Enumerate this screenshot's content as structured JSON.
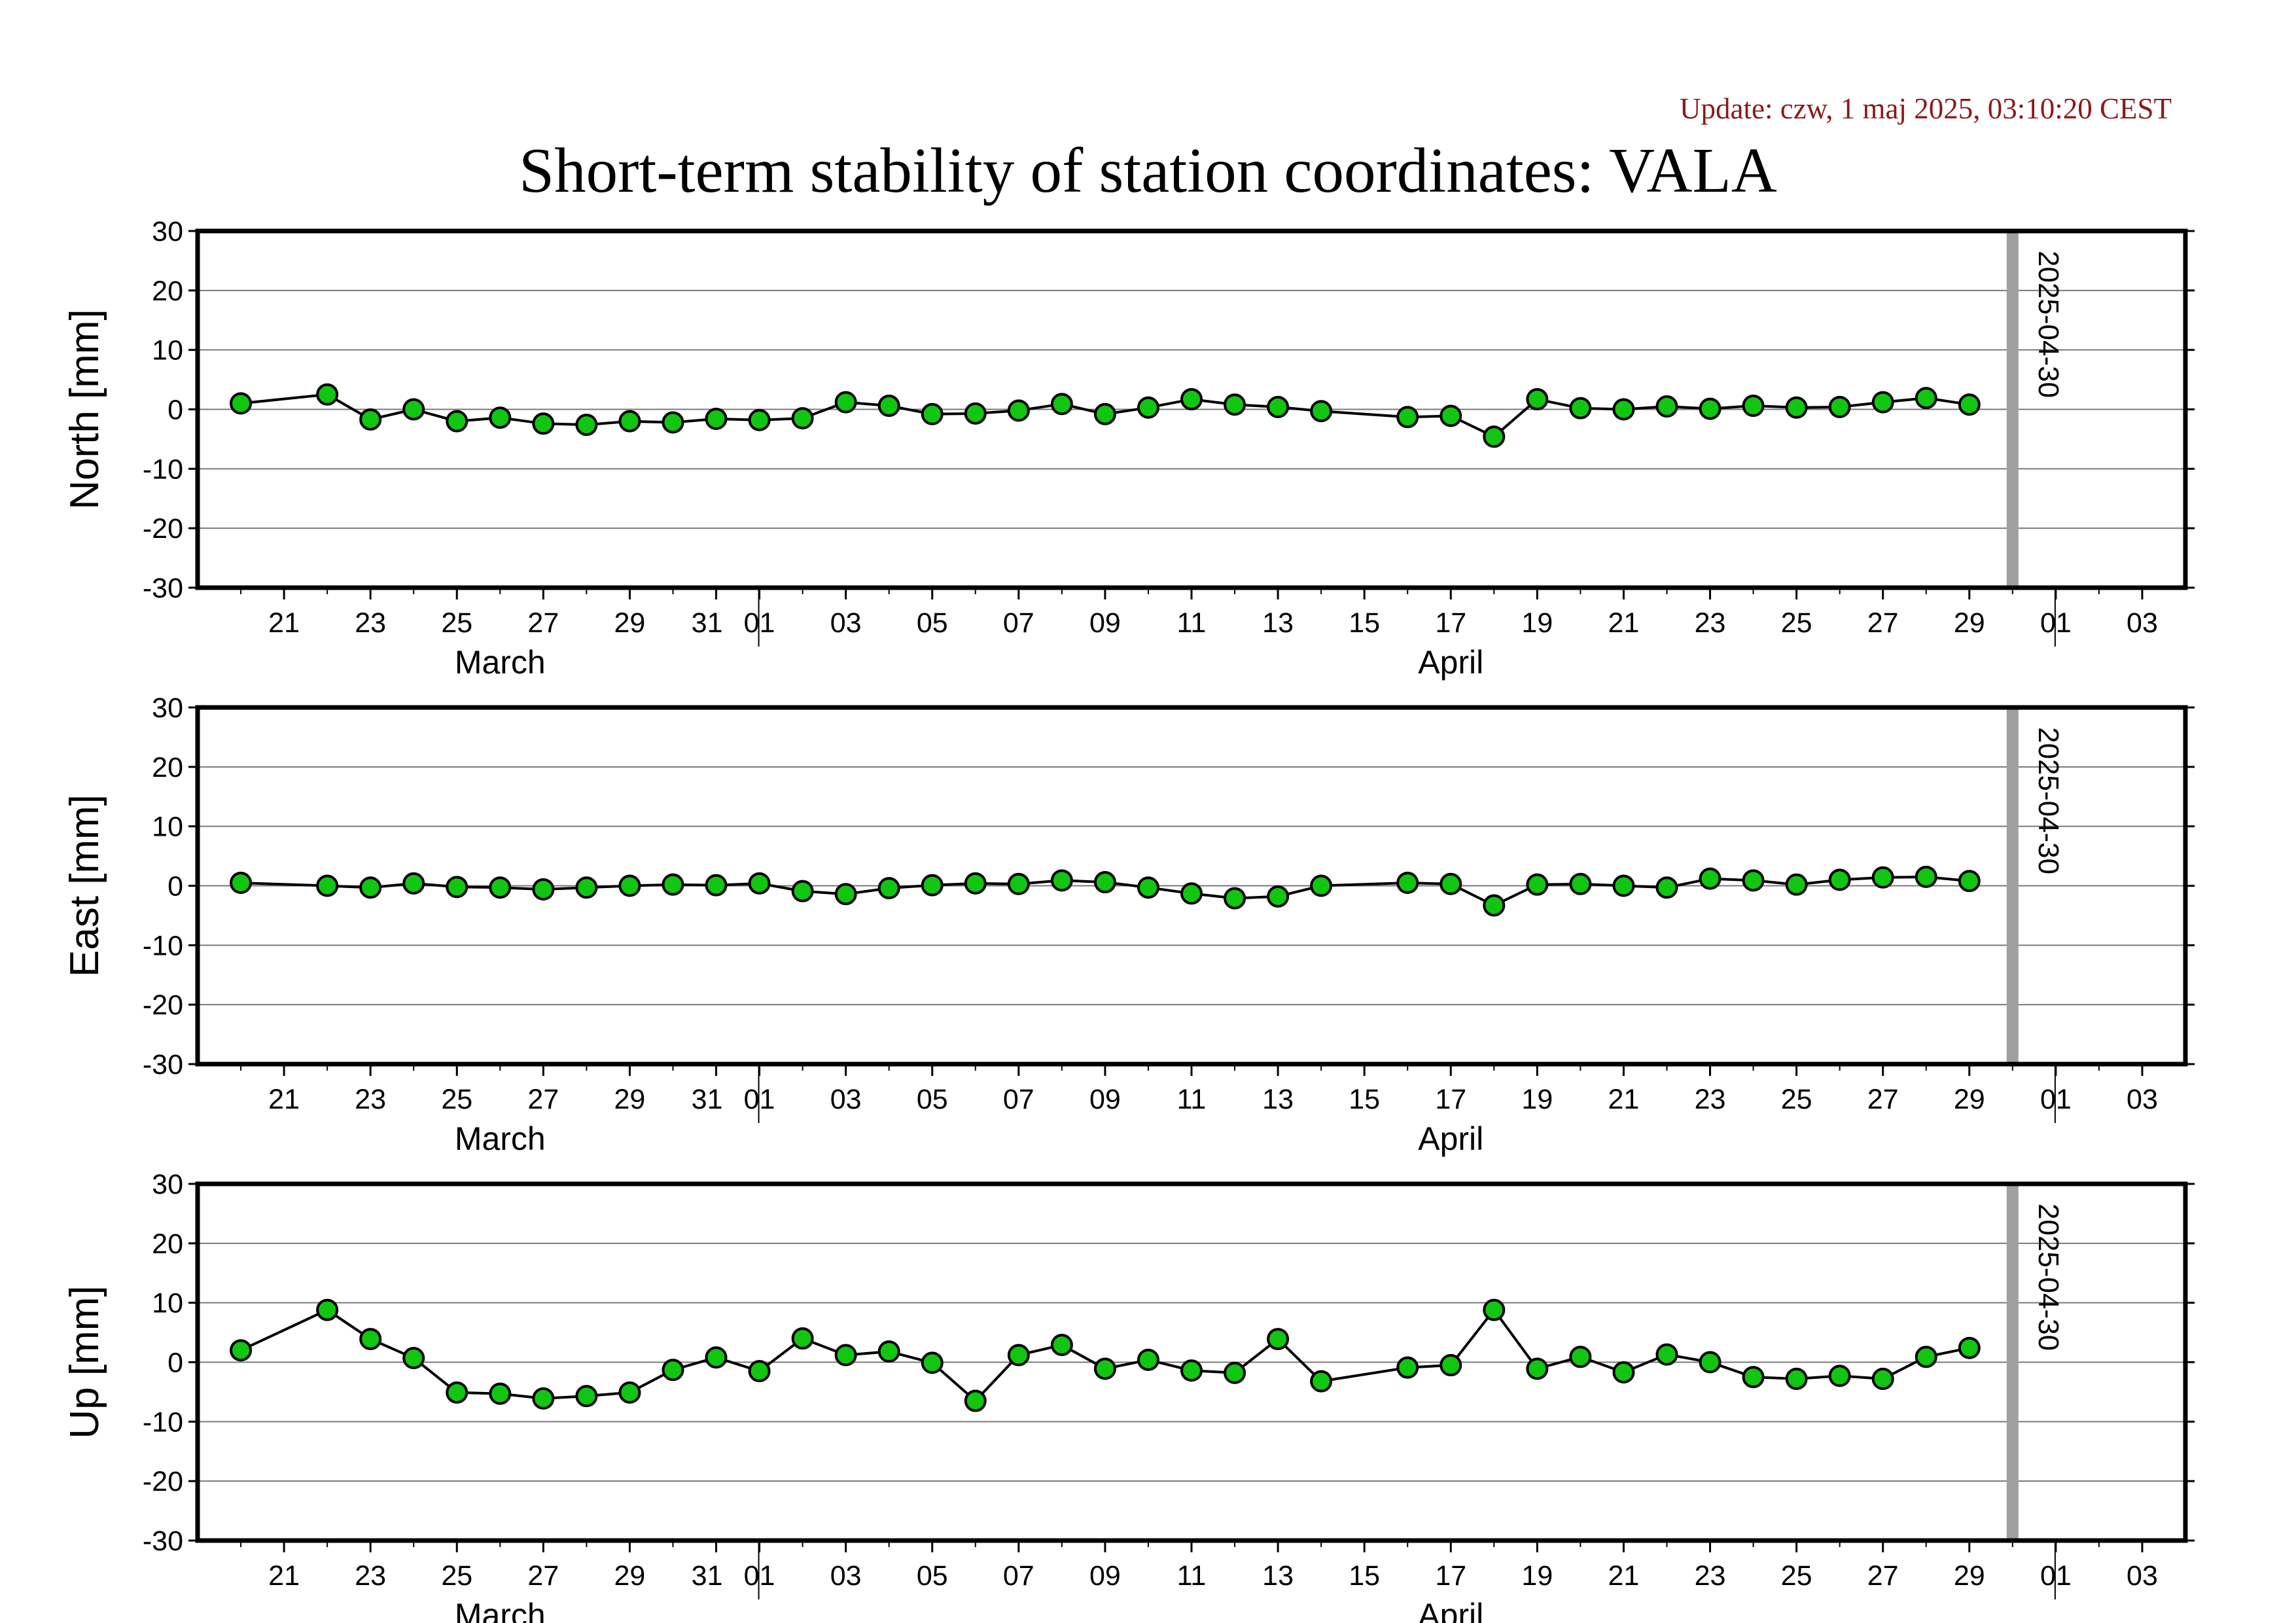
{
  "header": {
    "update": "Update: czw, 1 maj 2025, 03:10:20 CEST",
    "title": "Short-term stability of station coordinates: VALA"
  },
  "colors": {
    "marker_fill": "#11c611",
    "marker_stroke": "#000000",
    "line": "#000000",
    "marker_line": "#a0a0a0",
    "grid": "#7a7a7a",
    "stamp": "#8b1a1a"
  },
  "chart_data": [
    {
      "type": "line",
      "ylabel": "North [mm]",
      "ylim": [
        -30,
        30
      ],
      "yticks": [
        -30,
        -20,
        -10,
        0,
        10,
        20,
        30
      ],
      "xlim": [
        "2025-03-19",
        "2025-05-04"
      ],
      "xtick_labels": [
        {
          "date": "2025-03-21",
          "label": "21"
        },
        {
          "date": "2025-03-23",
          "label": "23"
        },
        {
          "date": "2025-03-25",
          "label": "25"
        },
        {
          "date": "2025-03-27",
          "label": "27"
        },
        {
          "date": "2025-03-29",
          "label": "29"
        },
        {
          "date": "2025-03-31",
          "label": "31"
        },
        {
          "date": "2025-04-01",
          "label": "01"
        },
        {
          "date": "2025-04-03",
          "label": "03"
        },
        {
          "date": "2025-04-05",
          "label": "05"
        },
        {
          "date": "2025-04-07",
          "label": "07"
        },
        {
          "date": "2025-04-09",
          "label": "09"
        },
        {
          "date": "2025-04-11",
          "label": "11"
        },
        {
          "date": "2025-04-13",
          "label": "13"
        },
        {
          "date": "2025-04-15",
          "label": "15"
        },
        {
          "date": "2025-04-17",
          "label": "17"
        },
        {
          "date": "2025-04-19",
          "label": "19"
        },
        {
          "date": "2025-04-21",
          "label": "21"
        },
        {
          "date": "2025-04-23",
          "label": "23"
        },
        {
          "date": "2025-04-25",
          "label": "25"
        },
        {
          "date": "2025-04-27",
          "label": "27"
        },
        {
          "date": "2025-04-29",
          "label": "29"
        },
        {
          "date": "2025-05-01",
          "label": "01"
        },
        {
          "date": "2025-05-03",
          "label": "03"
        }
      ],
      "month_labels": [
        {
          "date": "2025-03-26",
          "label": "March"
        },
        {
          "date": "2025-04-17",
          "label": "April"
        }
      ],
      "month_boundaries": [
        "2025-04-01",
        "2025-05-01"
      ],
      "marker": {
        "date": "2025-04-30",
        "label": "2025-04-30"
      },
      "grid": true,
      "x": [
        "2025-03-20",
        "2025-03-22",
        "2025-03-23",
        "2025-03-24",
        "2025-03-25",
        "2025-03-26",
        "2025-03-27",
        "2025-03-28",
        "2025-03-29",
        "2025-03-30",
        "2025-03-31",
        "2025-04-01",
        "2025-04-02",
        "2025-04-03",
        "2025-04-04",
        "2025-04-05",
        "2025-04-06",
        "2025-04-07",
        "2025-04-08",
        "2025-04-09",
        "2025-04-10",
        "2025-04-11",
        "2025-04-12",
        "2025-04-13",
        "2025-04-14",
        "2025-04-16",
        "2025-04-17",
        "2025-04-18",
        "2025-04-19",
        "2025-04-20",
        "2025-04-21",
        "2025-04-22",
        "2025-04-23",
        "2025-04-24",
        "2025-04-25",
        "2025-04-26",
        "2025-04-27",
        "2025-04-28",
        "2025-04-29"
      ],
      "y": [
        1.0,
        2.5,
        -1.7,
        0.0,
        -2.0,
        -1.4,
        -2.4,
        -2.6,
        -2.0,
        -2.2,
        -1.6,
        -1.8,
        -1.5,
        1.2,
        0.6,
        -0.8,
        -0.7,
        -0.2,
        0.9,
        -0.8,
        0.3,
        1.7,
        0.8,
        0.4,
        -0.3,
        -1.3,
        -1.1,
        -4.6,
        1.7,
        0.2,
        0.0,
        0.5,
        0.1,
        0.6,
        0.3,
        0.4,
        1.2,
        1.9,
        0.8
      ]
    },
    {
      "type": "line",
      "ylabel": "East [mm]",
      "ylim": [
        -30,
        30
      ],
      "yticks": [
        -30,
        -20,
        -10,
        0,
        10,
        20,
        30
      ],
      "xlim": [
        "2025-03-19",
        "2025-05-04"
      ],
      "xtick_labels": [
        {
          "date": "2025-03-21",
          "label": "21"
        },
        {
          "date": "2025-03-23",
          "label": "23"
        },
        {
          "date": "2025-03-25",
          "label": "25"
        },
        {
          "date": "2025-03-27",
          "label": "27"
        },
        {
          "date": "2025-03-29",
          "label": "29"
        },
        {
          "date": "2025-03-31",
          "label": "31"
        },
        {
          "date": "2025-04-01",
          "label": "01"
        },
        {
          "date": "2025-04-03",
          "label": "03"
        },
        {
          "date": "2025-04-05",
          "label": "05"
        },
        {
          "date": "2025-04-07",
          "label": "07"
        },
        {
          "date": "2025-04-09",
          "label": "09"
        },
        {
          "date": "2025-04-11",
          "label": "11"
        },
        {
          "date": "2025-04-13",
          "label": "13"
        },
        {
          "date": "2025-04-15",
          "label": "15"
        },
        {
          "date": "2025-04-17",
          "label": "17"
        },
        {
          "date": "2025-04-19",
          "label": "19"
        },
        {
          "date": "2025-04-21",
          "label": "21"
        },
        {
          "date": "2025-04-23",
          "label": "23"
        },
        {
          "date": "2025-04-25",
          "label": "25"
        },
        {
          "date": "2025-04-27",
          "label": "27"
        },
        {
          "date": "2025-04-29",
          "label": "29"
        },
        {
          "date": "2025-05-01",
          "label": "01"
        },
        {
          "date": "2025-05-03",
          "label": "03"
        }
      ],
      "month_labels": [
        {
          "date": "2025-03-26",
          "label": "March"
        },
        {
          "date": "2025-04-17",
          "label": "April"
        }
      ],
      "month_boundaries": [
        "2025-04-01",
        "2025-05-01"
      ],
      "marker": {
        "date": "2025-04-30",
        "label": "2025-04-30"
      },
      "grid": true,
      "x": [
        "2025-03-20",
        "2025-03-22",
        "2025-03-23",
        "2025-03-24",
        "2025-03-25",
        "2025-03-26",
        "2025-03-27",
        "2025-03-28",
        "2025-03-29",
        "2025-03-30",
        "2025-03-31",
        "2025-04-01",
        "2025-04-02",
        "2025-04-03",
        "2025-04-04",
        "2025-04-05",
        "2025-04-06",
        "2025-04-07",
        "2025-04-08",
        "2025-04-09",
        "2025-04-10",
        "2025-04-11",
        "2025-04-12",
        "2025-04-13",
        "2025-04-14",
        "2025-04-16",
        "2025-04-17",
        "2025-04-18",
        "2025-04-19",
        "2025-04-20",
        "2025-04-21",
        "2025-04-22",
        "2025-04-23",
        "2025-04-24",
        "2025-04-25",
        "2025-04-26",
        "2025-04-27",
        "2025-04-28",
        "2025-04-29"
      ],
      "y": [
        0.5,
        0.0,
        -0.3,
        0.4,
        -0.2,
        -0.3,
        -0.6,
        -0.3,
        0.0,
        0.2,
        0.1,
        0.4,
        -0.9,
        -1.4,
        -0.4,
        0.1,
        0.4,
        0.3,
        0.9,
        0.6,
        -0.3,
        -1.3,
        -2.1,
        -1.8,
        0.0,
        0.5,
        0.3,
        -3.3,
        0.2,
        0.3,
        0.0,
        -0.3,
        1.2,
        0.9,
        0.2,
        1.0,
        1.4,
        1.5,
        0.8
      ]
    },
    {
      "type": "line",
      "ylabel": "Up [mm]",
      "ylim": [
        -30,
        30
      ],
      "yticks": [
        -30,
        -20,
        -10,
        0,
        10,
        20,
        30
      ],
      "xlim": [
        "2025-03-19",
        "2025-05-04"
      ],
      "xtick_labels": [
        {
          "date": "2025-03-21",
          "label": "21"
        },
        {
          "date": "2025-03-23",
          "label": "23"
        },
        {
          "date": "2025-03-25",
          "label": "25"
        },
        {
          "date": "2025-03-27",
          "label": "27"
        },
        {
          "date": "2025-03-29",
          "label": "29"
        },
        {
          "date": "2025-03-31",
          "label": "31"
        },
        {
          "date": "2025-04-01",
          "label": "01"
        },
        {
          "date": "2025-04-03",
          "label": "03"
        },
        {
          "date": "2025-04-05",
          "label": "05"
        },
        {
          "date": "2025-04-07",
          "label": "07"
        },
        {
          "date": "2025-04-09",
          "label": "09"
        },
        {
          "date": "2025-04-11",
          "label": "11"
        },
        {
          "date": "2025-04-13",
          "label": "13"
        },
        {
          "date": "2025-04-15",
          "label": "15"
        },
        {
          "date": "2025-04-17",
          "label": "17"
        },
        {
          "date": "2025-04-19",
          "label": "19"
        },
        {
          "date": "2025-04-21",
          "label": "21"
        },
        {
          "date": "2025-04-23",
          "label": "23"
        },
        {
          "date": "2025-04-25",
          "label": "25"
        },
        {
          "date": "2025-04-27",
          "label": "27"
        },
        {
          "date": "2025-04-29",
          "label": "29"
        },
        {
          "date": "2025-05-01",
          "label": "01"
        },
        {
          "date": "2025-05-03",
          "label": "03"
        }
      ],
      "month_labels": [
        {
          "date": "2025-03-26",
          "label": "March"
        },
        {
          "date": "2025-04-17",
          "label": "April"
        }
      ],
      "month_boundaries": [
        "2025-04-01",
        "2025-05-01"
      ],
      "marker": {
        "date": "2025-04-30",
        "label": "2025-04-30"
      },
      "grid": true,
      "x": [
        "2025-03-20",
        "2025-03-22",
        "2025-03-23",
        "2025-03-24",
        "2025-03-25",
        "2025-03-26",
        "2025-03-27",
        "2025-03-28",
        "2025-03-29",
        "2025-03-30",
        "2025-03-31",
        "2025-04-01",
        "2025-04-02",
        "2025-04-03",
        "2025-04-04",
        "2025-04-05",
        "2025-04-06",
        "2025-04-07",
        "2025-04-08",
        "2025-04-09",
        "2025-04-10",
        "2025-04-11",
        "2025-04-12",
        "2025-04-13",
        "2025-04-14",
        "2025-04-16",
        "2025-04-17",
        "2025-04-18",
        "2025-04-19",
        "2025-04-20",
        "2025-04-21",
        "2025-04-22",
        "2025-04-23",
        "2025-04-24",
        "2025-04-25",
        "2025-04-26",
        "2025-04-27",
        "2025-04-28",
        "2025-04-29"
      ],
      "y": [
        2.0,
        8.8,
        3.9,
        0.7,
        -5.1,
        -5.3,
        -6.1,
        -5.7,
        -5.1,
        -1.3,
        0.8,
        -1.5,
        4.0,
        1.2,
        1.8,
        -0.1,
        -6.5,
        1.2,
        2.9,
        -1.1,
        0.4,
        -1.4,
        -1.8,
        3.9,
        -3.2,
        -0.9,
        -0.5,
        8.8,
        -1.1,
        0.9,
        -1.7,
        1.3,
        0.0,
        -2.5,
        -2.8,
        -2.3,
        -2.8,
        0.9,
        2.4
      ]
    }
  ]
}
